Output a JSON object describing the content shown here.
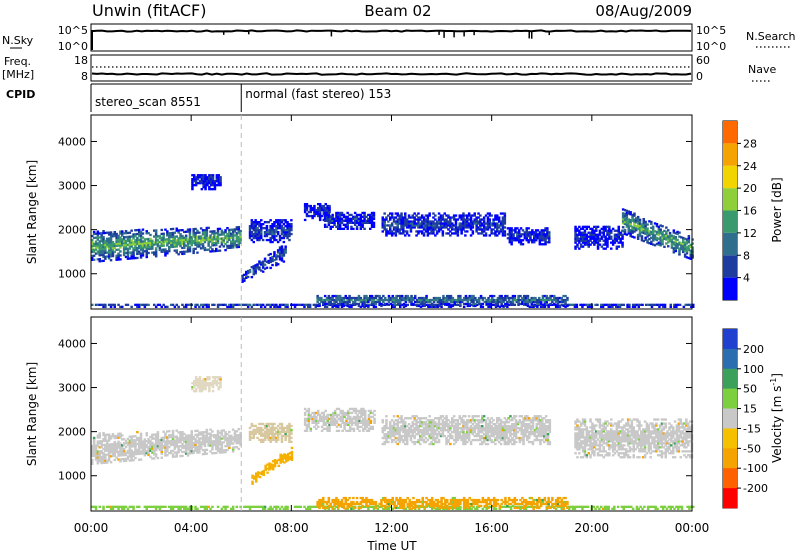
{
  "header": {
    "station": "Unwin (fitACF)",
    "beam": "Beam 02",
    "date": "08/Aug/2009"
  },
  "panels": {
    "nsky": {
      "label": "N.Sky",
      "tick_top": "10^5",
      "tick_bottom": "10^0",
      "right_label": "N.Search",
      "right_tick_top": "10^5",
      "right_tick_bottom": "10^0"
    },
    "freq": {
      "label": "Freq.",
      "unit": "[MHz]",
      "tick_top": "18",
      "tick_bottom": "8",
      "right_label": "Nave",
      "right_tick_top": "60",
      "right_tick_bottom": "0"
    },
    "cpid": {
      "label": "CPID",
      "segments": [
        {
          "text": "stereo_scan 8551",
          "start_hour": 0,
          "end_hour": 6.0
        },
        {
          "text": "normal (fast stereo) 153",
          "start_hour": 6.0,
          "end_hour": 24
        }
      ]
    }
  },
  "chart_data": [
    {
      "type": "heatmap",
      "name": "power",
      "xlabel": "",
      "ylabel": "Slant Range [km]",
      "xlim": [
        0,
        24
      ],
      "ylim": [
        200,
        4600
      ],
      "yticks": [
        1000,
        2000,
        3000,
        4000
      ],
      "ytick_labels": [
        "1000",
        "2000",
        "3000",
        "4000"
      ],
      "colorbar": {
        "label": "Power [dB]",
        "ticks": [
          "4",
          "8",
          "12",
          "16",
          "20",
          "24",
          "28"
        ],
        "tick_values": [
          4,
          8,
          12,
          16,
          20,
          24,
          28
        ],
        "range": [
          0,
          32
        ],
        "colors": [
          "#0000ff",
          "#1e3ca0",
          "#2f6e8c",
          "#3a9a6e",
          "#8fcf3a",
          "#f2d400",
          "#f5a300",
          "#ff6a00",
          "#ff0000"
        ]
      },
      "regions": [
        {
          "t0": 0.0,
          "t1": 6.0,
          "r0": 1250,
          "r1": 1950,
          "r_end0": 1550,
          "r_end1": 2050,
          "level": 16
        },
        {
          "t0": 4.0,
          "t1": 5.2,
          "r0": 2900,
          "r1": 3250,
          "level": 4
        },
        {
          "t0": 6.0,
          "t1": 7.8,
          "r0": 800,
          "r1": 1000,
          "r_end0": 1300,
          "r_end1": 1700,
          "level": 8
        },
        {
          "t0": 6.3,
          "t1": 8.0,
          "r0": 1700,
          "r1": 2200,
          "level": 6
        },
        {
          "t0": 8.5,
          "t1": 9.5,
          "r0": 2200,
          "r1": 2600,
          "level": 4
        },
        {
          "t0": 9.3,
          "t1": 11.3,
          "r0": 2000,
          "r1": 2400,
          "level": 5
        },
        {
          "t0": 11.6,
          "t1": 16.5,
          "r0": 1850,
          "r1": 2350,
          "level": 6
        },
        {
          "t0": 16.6,
          "t1": 18.3,
          "r0": 1650,
          "r1": 2050,
          "level": 5
        },
        {
          "t0": 19.3,
          "t1": 21.2,
          "r0": 1550,
          "r1": 2050,
          "level": 4
        },
        {
          "t0": 21.2,
          "t1": 24.0,
          "r0": 1900,
          "r1": 2450,
          "r_end0": 1300,
          "r_end1": 1800,
          "level": 15
        },
        {
          "t0": 0.0,
          "t1": 24.0,
          "r0": 230,
          "r1": 300,
          "level": 7
        },
        {
          "t0": 9.0,
          "t1": 19.0,
          "r0": 250,
          "r1": 520,
          "level": 10
        }
      ]
    },
    {
      "type": "heatmap",
      "name": "velocity",
      "xlabel": "Time UT",
      "ylabel": "Slant Range [km]",
      "xlim": [
        0,
        24
      ],
      "ylim": [
        200,
        4600
      ],
      "xticks": [
        0,
        4,
        8,
        12,
        16,
        20,
        24
      ],
      "xtick_labels": [
        "00:00",
        "04:00",
        "08:00",
        "12:00",
        "16:00",
        "20:00",
        "00:00"
      ],
      "yticks": [
        1000,
        2000,
        3000,
        4000
      ],
      "ytick_labels": [
        "1000",
        "2000",
        "3000",
        "4000"
      ],
      "colorbar": {
        "label": "Velocity [m s",
        "label_sup": "-1",
        "label_end": "]",
        "ticks": [
          "200",
          "100",
          "50",
          "15",
          "-15",
          "-50",
          "-100",
          "-200"
        ],
        "colors": [
          "#2040d0",
          "#2a6eb0",
          "#3aa05a",
          "#7cd040",
          "#c8c8c8",
          "#f5c000",
          "#f5a300",
          "#ff6000",
          "#ff0000"
        ]
      },
      "regions": [
        {
          "t0": 0.0,
          "t1": 6.0,
          "r0": 1250,
          "r1": 1950,
          "r_end0": 1550,
          "r_end1": 2050,
          "color": "#c8c8c8"
        },
        {
          "t0": 4.0,
          "t1": 5.2,
          "r0": 2900,
          "r1": 3250,
          "color": "#e0d8c0"
        },
        {
          "t0": 6.4,
          "t1": 8.0,
          "r0": 800,
          "r1": 1000,
          "r_end0": 1350,
          "r_end1": 1650,
          "color": "#f5b000"
        },
        {
          "t0": 6.3,
          "t1": 8.0,
          "r0": 1750,
          "r1": 2200,
          "color": "#d8c8a0"
        },
        {
          "t0": 8.5,
          "t1": 11.3,
          "r0": 2000,
          "r1": 2500,
          "color": "#c8c8c8"
        },
        {
          "t0": 11.6,
          "t1": 18.3,
          "r0": 1700,
          "r1": 2350,
          "color": "#c8c8c8"
        },
        {
          "t0": 19.3,
          "t1": 24.0,
          "r0": 1400,
          "r1": 2300,
          "color": "#c8c8c8"
        },
        {
          "t0": 0.0,
          "t1": 24.0,
          "r0": 230,
          "r1": 300,
          "color": "#7cd040"
        },
        {
          "t0": 9.0,
          "t1": 19.0,
          "r0": 250,
          "r1": 480,
          "color": "#f5a300"
        }
      ]
    }
  ]
}
